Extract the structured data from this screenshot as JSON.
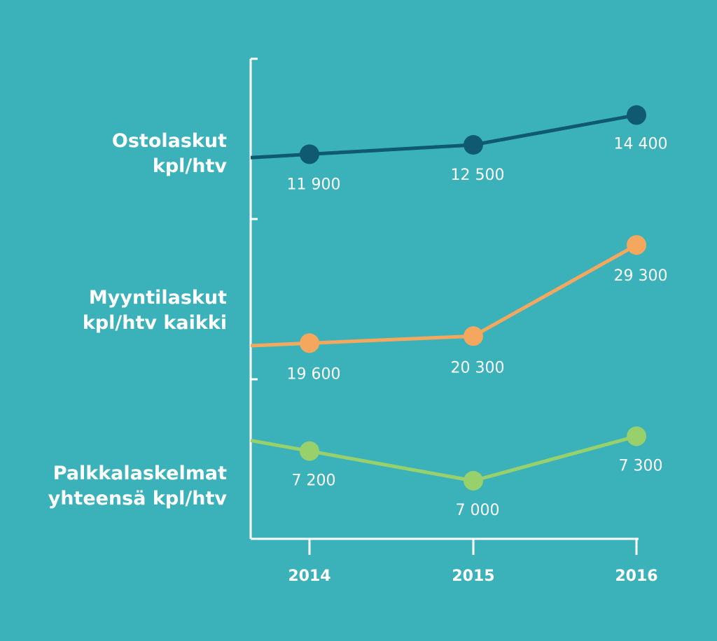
{
  "chart_data": {
    "type": "line",
    "x": [
      "2014",
      "2015",
      "2016"
    ],
    "series": [
      {
        "name_lines": [
          "Ostolaskut",
          "kpl/htv"
        ],
        "values": [
          11900,
          12500,
          14400
        ],
        "value_labels": [
          "11 900",
          "12 500",
          "14 400"
        ],
        "color": "#0f5a70"
      },
      {
        "name_lines": [
          "Myyntilaskut",
          "kpl/htv kaikki"
        ],
        "values": [
          19600,
          20300,
          29300
        ],
        "value_labels": [
          "19 600",
          "20 300",
          "29 300"
        ],
        "color": "#f5a85d"
      },
      {
        "name_lines": [
          "Palkkalaskelmat",
          "yhteensä kpl/htv"
        ],
        "values": [
          7200,
          7000,
          7300
        ],
        "value_labels": [
          "7 200",
          "7 000",
          "7 300"
        ],
        "color": "#98d06b"
      }
    ],
    "background_color": "#3bb2ba",
    "axis_color": "#ffffff",
    "grid": false,
    "legend": "left"
  }
}
